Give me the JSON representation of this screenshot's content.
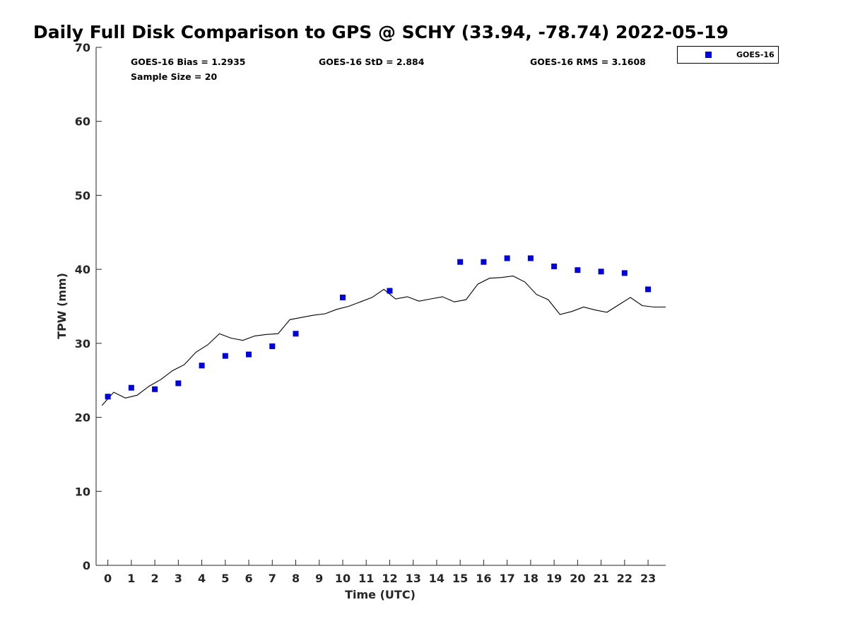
{
  "chart_data": {
    "type": "scatter",
    "title": "Daily Full Disk Comparison to GPS @ SCHY (33.94, -78.74) 2022-05-19",
    "xlabel": "Time (UTC)",
    "ylabel": "TPW (mm)",
    "xlim": [
      -0.5,
      23.75
    ],
    "ylim": [
      0,
      70
    ],
    "x_ticks": [
      0,
      1,
      2,
      3,
      4,
      5,
      6,
      7,
      8,
      9,
      10,
      11,
      12,
      13,
      14,
      15,
      16,
      17,
      18,
      19,
      20,
      21,
      22,
      23
    ],
    "y_ticks": [
      0,
      10,
      20,
      30,
      40,
      50,
      60,
      70
    ],
    "grid": false,
    "legend_position": "outside-top-right",
    "stats": {
      "bias": "GOES-16 Bias = 1.2935",
      "std": "GOES-16 StD = 2.884",
      "rms": "GOES-16 RMS = 3.1608",
      "sample_size": "Sample Size = 20"
    },
    "series": [
      {
        "name": "GOES-16",
        "kind": "scatter",
        "marker": "square",
        "color": "#0000dd",
        "x": [
          0,
          1,
          2,
          3,
          4,
          5,
          6,
          7,
          8,
          10,
          12,
          15,
          16,
          17,
          18,
          19,
          20,
          21,
          22,
          23
        ],
        "y": [
          22.8,
          24.0,
          23.8,
          24.6,
          27.0,
          28.3,
          28.5,
          29.6,
          31.3,
          36.2,
          37.1,
          41.0,
          41.0,
          41.5,
          41.5,
          40.4,
          39.9,
          39.7,
          39.5,
          37.3
        ]
      },
      {
        "kind": "line",
        "color": "#000000",
        "x": [
          -0.25,
          0.25,
          0.75,
          1.25,
          1.75,
          2.25,
          2.75,
          3.25,
          3.75,
          4.25,
          4.75,
          5.25,
          5.75,
          6.25,
          6.75,
          7.25,
          7.75,
          8.25,
          8.75,
          9.25,
          9.75,
          10.25,
          10.75,
          11.25,
          11.75,
          12.25,
          12.75,
          13.25,
          13.75,
          14.25,
          14.75,
          15.25,
          15.75,
          16.25,
          16.75,
          17.25,
          17.75,
          18.25,
          18.75,
          19.25,
          19.75,
          20.25,
          20.75,
          21.25,
          21.75,
          22.25,
          22.75,
          23.25,
          23.75
        ],
        "y": [
          21.6,
          23.4,
          22.6,
          23.0,
          24.2,
          25.1,
          26.3,
          27.1,
          28.8,
          29.8,
          31.3,
          30.7,
          30.4,
          31.0,
          31.2,
          31.3,
          33.2,
          33.5,
          33.8,
          34.0,
          34.6,
          35.0,
          35.6,
          36.2,
          37.3,
          36.0,
          36.3,
          35.7,
          36.0,
          36.3,
          35.6,
          35.9,
          38.0,
          38.8,
          38.9,
          39.1,
          38.3,
          36.6,
          35.9,
          33.9,
          34.3,
          34.9,
          34.5,
          34.2,
          35.2,
          36.2,
          35.1,
          34.9,
          34.9
        ]
      }
    ]
  }
}
